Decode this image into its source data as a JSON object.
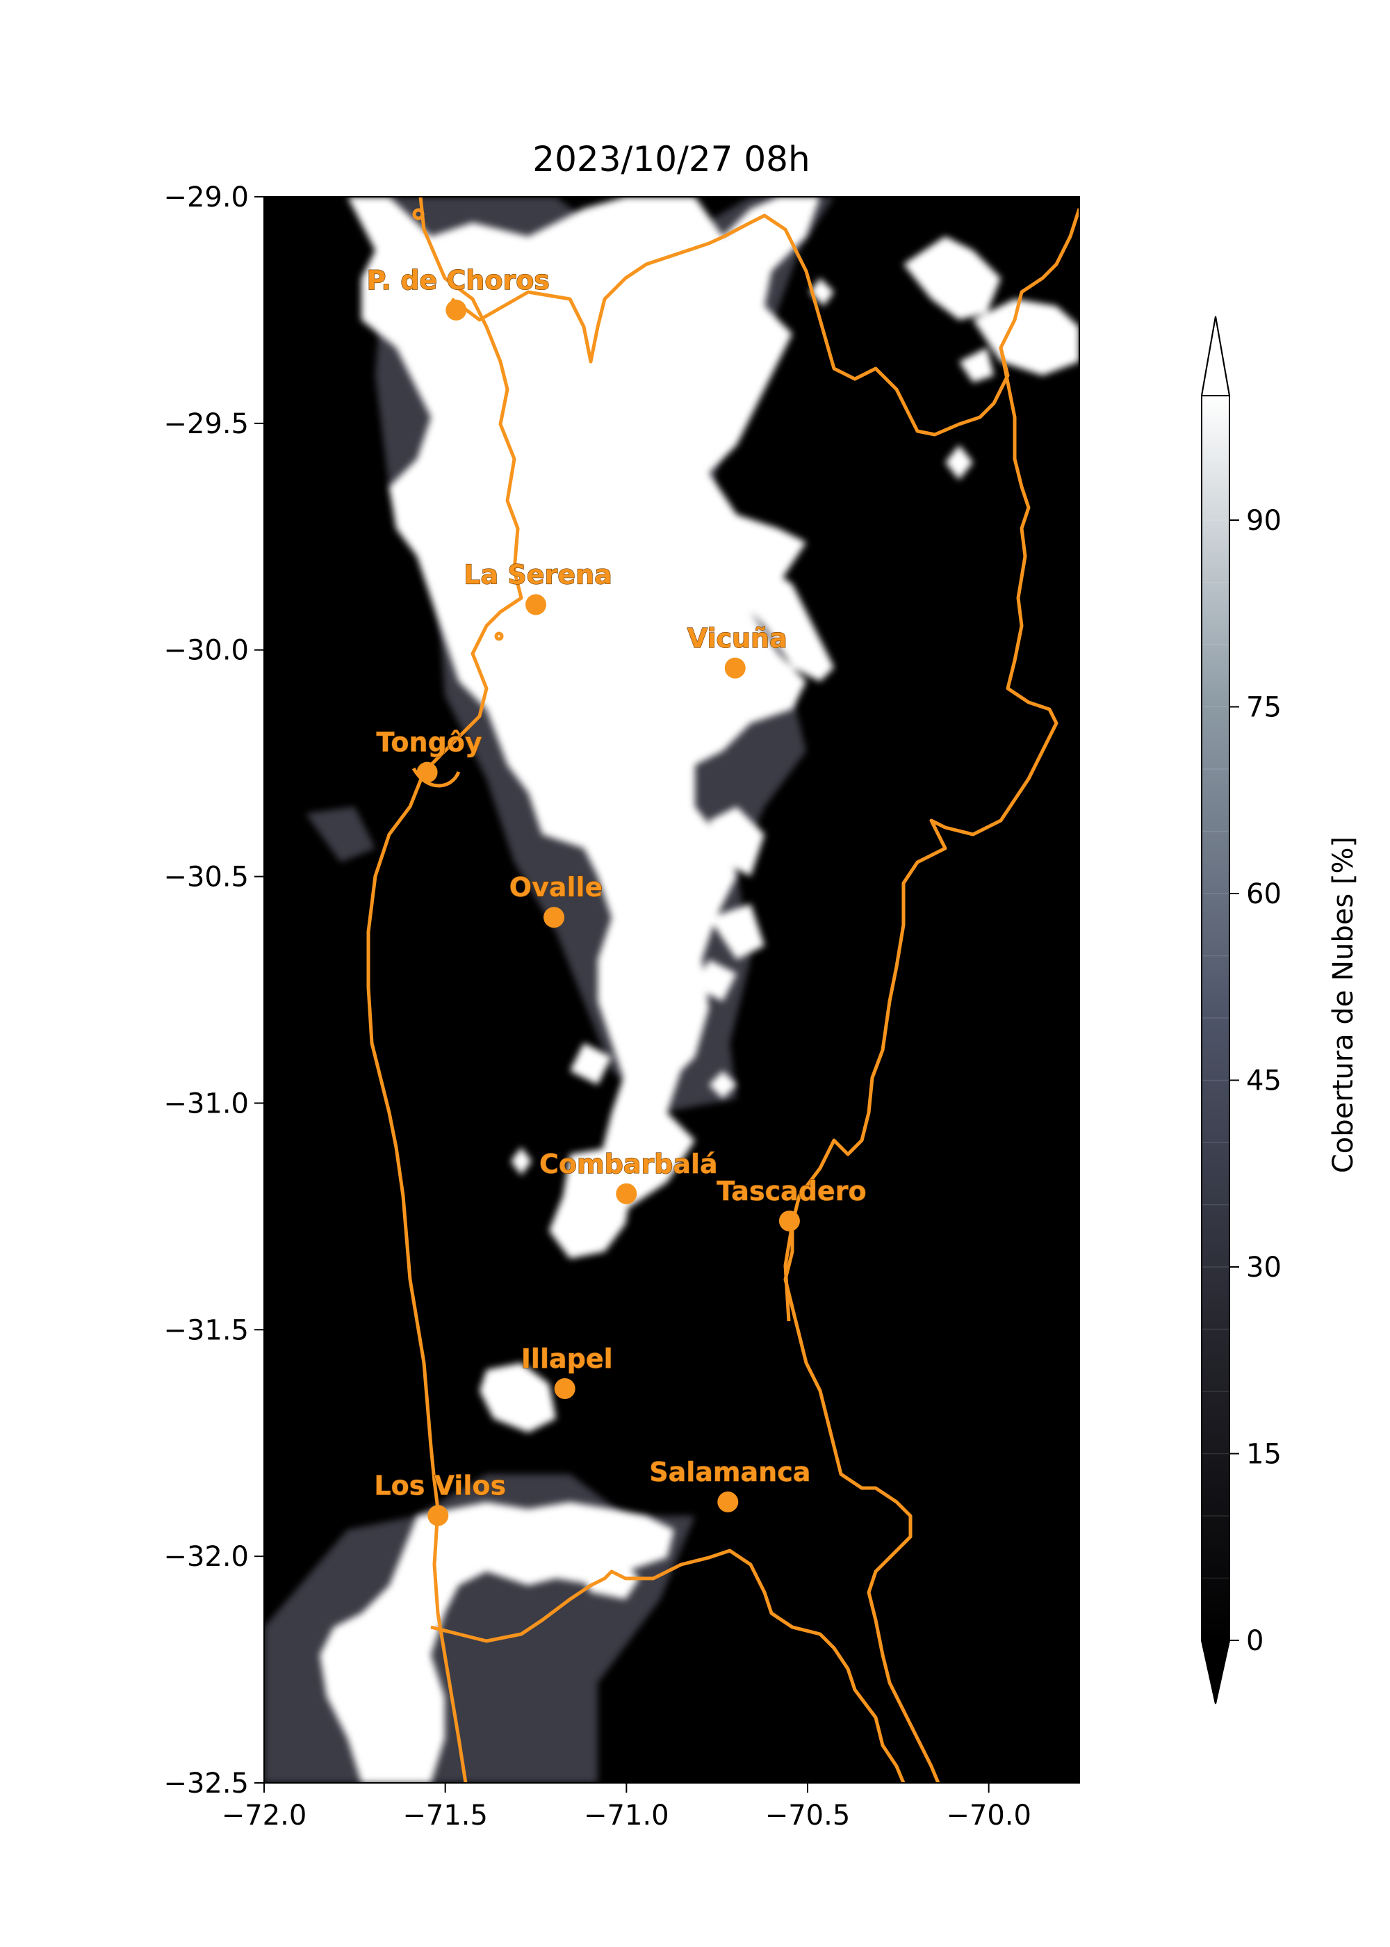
{
  "title": "2023/10/27 08h",
  "colors": {
    "accent": "#f7941d",
    "background_clear": "#000000",
    "cloud_full": "#ffffff"
  },
  "chart_data": {
    "type": "heatmap",
    "title": "2023/10/27 08h",
    "xlabel": "",
    "ylabel": "",
    "xlim": [
      -72.0,
      -69.75
    ],
    "ylim": [
      -32.5,
      -29.0
    ],
    "x_ticks": [
      -72.0,
      -71.5,
      -71.0,
      -70.5,
      -70.0
    ],
    "x_tick_labels": [
      "−72.0",
      "−71.5",
      "−71.0",
      "−70.5",
      "−70.0"
    ],
    "y_ticks": [
      -29.0,
      -29.5,
      -30.0,
      -30.5,
      -31.0,
      -31.5,
      -32.0,
      -32.5
    ],
    "y_tick_labels": [
      "−29.0",
      "−29.5",
      "−30.0",
      "−30.5",
      "−31.0",
      "−31.5",
      "−32.0",
      "−32.5"
    ],
    "colorbar": {
      "label": "Cobertura de Nubes [%]",
      "min": 0,
      "max": 100,
      "extend": "both",
      "ticks": [
        0,
        15,
        30,
        45,
        60,
        75,
        90
      ],
      "tick_labels": [
        "0",
        "15",
        "30",
        "45",
        "60",
        "75",
        "90"
      ],
      "levels": [
        0,
        5,
        10,
        15,
        20,
        25,
        30,
        35,
        40,
        45,
        50,
        55,
        60,
        65,
        70,
        75,
        80,
        85,
        90,
        95,
        100
      ]
    },
    "cities": [
      {
        "name": "P. de Choros",
        "lon": -71.47,
        "lat": -29.25
      },
      {
        "name": "La Serena",
        "lon": -71.25,
        "lat": -29.9
      },
      {
        "name": "Vicuña",
        "lon": -70.7,
        "lat": -30.04
      },
      {
        "name": "Tongôy",
        "lon": -71.55,
        "lat": -30.27
      },
      {
        "name": "Ovalle",
        "lon": -71.2,
        "lat": -30.59
      },
      {
        "name": "Combarbalá",
        "lon": -71.0,
        "lat": -31.2
      },
      {
        "name": "Tascadero",
        "lon": -70.55,
        "lat": -31.26
      },
      {
        "name": "Illapel",
        "lon": -71.17,
        "lat": -31.63
      },
      {
        "name": "Los Vilos",
        "lon": -71.52,
        "lat": -31.91
      },
      {
        "name": "Salamanca",
        "lon": -70.72,
        "lat": -31.88
      }
    ]
  }
}
